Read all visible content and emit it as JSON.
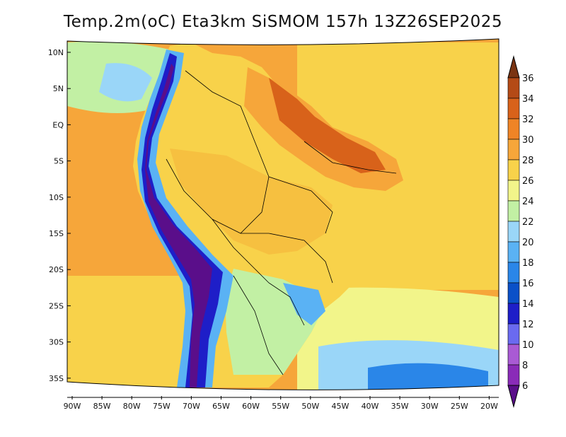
{
  "title": "Temp.2m(oC) Eta3km SiSMOM 157h 13Z26SEP2025",
  "lat_labels": [
    "10N",
    "5N",
    "EQ",
    "5S",
    "10S",
    "15S",
    "20S",
    "25S",
    "30S",
    "35S"
  ],
  "lon_labels": [
    "90W",
    "85W",
    "80W",
    "75W",
    "70W",
    "65W",
    "60W",
    "55W",
    "50W",
    "45W",
    "40W",
    "35W",
    "30W",
    "25W",
    "20W"
  ],
  "colorbar": {
    "levels": [
      "6",
      "8",
      "10",
      "12",
      "14",
      "16",
      "18",
      "20",
      "22",
      "24",
      "26",
      "28",
      "30",
      "32",
      "34",
      "36"
    ],
    "colors": [
      "#5a0e8a",
      "#8a2bb8",
      "#a95ad4",
      "#6a6af0",
      "#1e1ec8",
      "#0a50c8",
      "#2a86e8",
      "#5ab2f4",
      "#9ad6f8",
      "#c2f0a4",
      "#f2f58a",
      "#f8d24a",
      "#f6a63a",
      "#ef8426",
      "#d8621a",
      "#b44a16",
      "#7a3412"
    ]
  },
  "map_colors": {
    "ocean_warm": "#f6a63a",
    "ocean_mild": "#f8d24a",
    "ocean_cool": "#f2f58a",
    "land_base": "#f8d24a",
    "andes_high": "#5a0e8a",
    "andes_mid": "#1e1ec8",
    "andes_low": "#5ab2f4",
    "north_hot": "#d8621a",
    "south_cold": "#2a86e8",
    "border": "#000000"
  }
}
